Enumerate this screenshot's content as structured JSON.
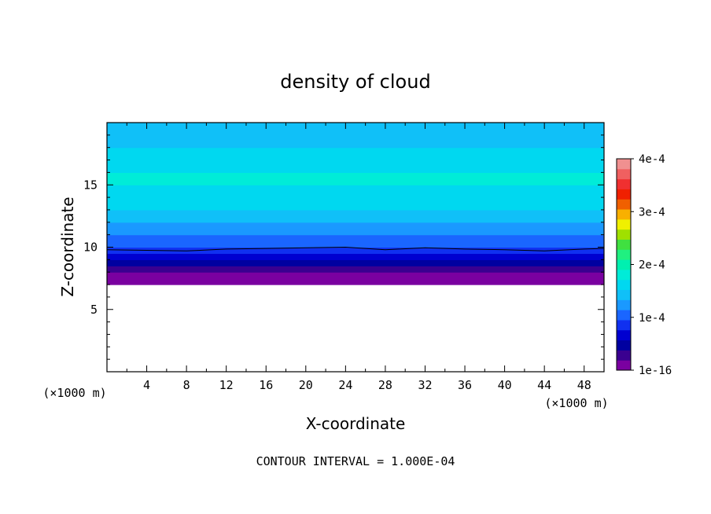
{
  "chart_data": {
    "type": "heatmap",
    "title": "density of cloud",
    "xlabel": "X-coordinate",
    "ylabel": "Z-coordinate",
    "x_unit": "(×1000 m)",
    "x_unit_right": "(×1000 m)",
    "xlim": [
      0,
      50
    ],
    "ylim": [
      0,
      20
    ],
    "x_ticks": [
      "4",
      "8",
      "12",
      "16",
      "20",
      "24",
      "28",
      "32",
      "36",
      "40",
      "44",
      "48"
    ],
    "y_ticks": [
      "5",
      "10",
      "15"
    ],
    "colorbar": {
      "range": [
        0,
        0.0004
      ],
      "tick_labels": [
        "1e-16",
        "1e-4",
        "2e-4",
        "3e-4",
        "4e-4"
      ]
    },
    "contour_interval_text": "CONTOUR INTERVAL = 1.000E-04",
    "contour_level": 0.0001,
    "cloud_base_z": 7.0,
    "cloud_top_z": 20,
    "vertical_profile": [
      {
        "z": 7.0,
        "value": 5e-06
      },
      {
        "z": 7.6,
        "value": 1.5e-05
      },
      {
        "z": 8.0,
        "value": 2e-05
      },
      {
        "z": 8.5,
        "value": 4e-05
      },
      {
        "z": 9.0,
        "value": 6e-05
      },
      {
        "z": 9.5,
        "value": 8e-05
      },
      {
        "z": 10.0,
        "value": 0.0001
      },
      {
        "z": 10.5,
        "value": 0.000112
      },
      {
        "z": 11.0,
        "value": 0.000122
      },
      {
        "z": 11.5,
        "value": 0.000132
      },
      {
        "z": 12.0,
        "value": 0.00014
      },
      {
        "z": 12.5,
        "value": 0.000148
      },
      {
        "z": 13.0,
        "value": 0.000155
      },
      {
        "z": 13.5,
        "value": 0.000162
      },
      {
        "z": 14.0,
        "value": 0.000168
      },
      {
        "z": 15.0,
        "value": 0.000172
      },
      {
        "z": 16.0,
        "value": 0.000168
      },
      {
        "z": 16.5,
        "value": 0.000162
      },
      {
        "z": 17.2,
        "value": 0.000155
      },
      {
        "z": 18.0,
        "value": 0.000148
      },
      {
        "z": 18.6,
        "value": 0.000142
      },
      {
        "z": 19.3,
        "value": 0.000135
      },
      {
        "z": 20.0,
        "value": 0.00013
      }
    ],
    "contour_line_z": [
      [
        0,
        9.8
      ],
      [
        4,
        9.75
      ],
      [
        8,
        9.7
      ],
      [
        12,
        9.85
      ],
      [
        16,
        9.9
      ],
      [
        20,
        9.95
      ],
      [
        24,
        10.0
      ],
      [
        28,
        9.8
      ],
      [
        32,
        9.95
      ],
      [
        36,
        9.85
      ],
      [
        40,
        9.8
      ],
      [
        44,
        9.7
      ],
      [
        48,
        9.85
      ],
      [
        50,
        9.9
      ]
    ],
    "colors": [
      "#7a00a0",
      "#3a0090",
      "#0000a0",
      "#0000d0",
      "#1030f0",
      "#1a66ff",
      "#1a99ff",
      "#10c0f8",
      "#00d8f0",
      "#00ecd8",
      "#00f0b0",
      "#20f080",
      "#40e040",
      "#a0e000",
      "#f0f000",
      "#f8b000",
      "#f06000",
      "#f02000",
      "#f03030",
      "#f06060",
      "#f09090"
    ]
  }
}
